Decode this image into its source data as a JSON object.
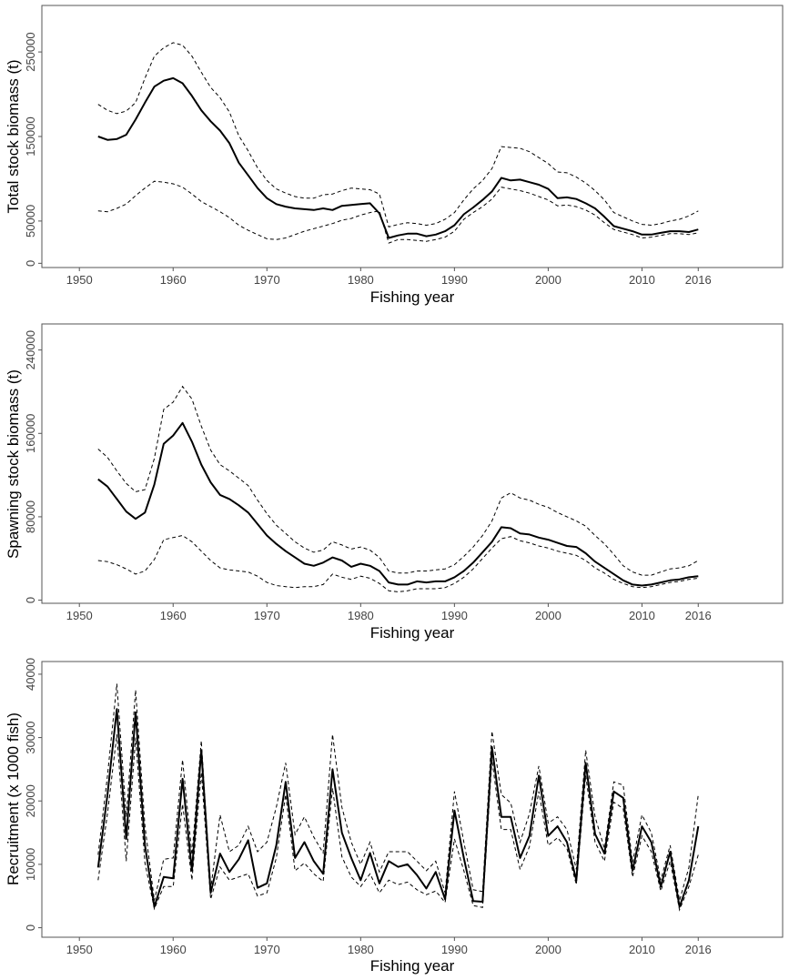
{
  "chart_data": [
    {
      "type": "line",
      "xlabel": "Fishing year",
      "ylabel": "Total stock biomass (t)",
      "xlim": [
        1946,
        2025
      ],
      "ylim": [
        -5000,
        305000
      ],
      "xticks": [
        "1950",
        "1960",
        "1970",
        "1980",
        "1990",
        "2000",
        "2010",
        "2016"
      ],
      "yticks": [
        "0",
        "50000",
        "150000",
        "250000"
      ],
      "grid": false,
      "x": [
        1952,
        1953,
        1954,
        1955,
        1956,
        1957,
        1958,
        1959,
        1960,
        1961,
        1962,
        1963,
        1964,
        1965,
        1966,
        1967,
        1968,
        1969,
        1970,
        1971,
        1972,
        1973,
        1974,
        1975,
        1976,
        1977,
        1978,
        1979,
        1980,
        1981,
        1982,
        1983,
        1984,
        1985,
        1986,
        1987,
        1988,
        1989,
        1990,
        1991,
        1992,
        1993,
        1994,
        1995,
        1996,
        1997,
        1998,
        1999,
        2000,
        2001,
        2002,
        2003,
        2004,
        2005,
        2006,
        2007,
        2008,
        2009,
        2010,
        2011,
        2012,
        2013,
        2014,
        2015,
        2016
      ],
      "series": [
        {
          "values": [
            150000,
            146000,
            147000,
            152000,
            170000,
            190000,
            209000,
            216000,
            219000,
            213000,
            198000,
            181000,
            168000,
            157000,
            142000,
            119000,
            104000,
            89000,
            77000,
            70000,
            67000,
            65000,
            64000,
            63000,
            65000,
            63000,
            68000,
            69000,
            70000,
            71000,
            59000,
            30000,
            33000,
            35000,
            35000,
            32000,
            34000,
            38000,
            45000,
            58000,
            66000,
            75000,
            85000,
            101000,
            98000,
            99000,
            96000,
            93000,
            88000,
            77000,
            78000,
            76000,
            71000,
            65000,
            55000,
            44000,
            41000,
            38000,
            34000,
            34000,
            36000,
            38000,
            38000,
            37000,
            40000
          ]
        },
        {
          "values": [
            188000,
            181000,
            177000,
            180000,
            190000,
            219000,
            245000,
            255000,
            261000,
            258000,
            245000,
            226000,
            208000,
            196000,
            179000,
            151000,
            133000,
            113000,
            98000,
            88000,
            83000,
            79000,
            77000,
            77000,
            81000,
            82000,
            86000,
            89000,
            88000,
            87000,
            82000,
            43000,
            46000,
            48000,
            47000,
            45000,
            47000,
            52000,
            60000,
            75000,
            88000,
            98000,
            112000,
            138000,
            137000,
            136000,
            132000,
            125000,
            118000,
            108000,
            107000,
            102000,
            95000,
            86000,
            75000,
            60000,
            55000,
            50000,
            46000,
            45000,
            47000,
            50000,
            52000,
            56000,
            62000
          ]
        },
        {
          "values": [
            62000,
            61000,
            65000,
            70000,
            80000,
            89000,
            97000,
            96000,
            94000,
            90000,
            82000,
            73000,
            67000,
            61000,
            54000,
            45000,
            39000,
            34000,
            29000,
            28000,
            30000,
            34000,
            38000,
            41000,
            44000,
            47000,
            51000,
            53000,
            57000,
            60000,
            62000,
            24000,
            28000,
            28000,
            27000,
            26000,
            28000,
            31000,
            38000,
            52000,
            60000,
            67000,
            76000,
            90000,
            88000,
            86000,
            83000,
            79000,
            75000,
            68000,
            69000,
            67000,
            63000,
            57000,
            48000,
            40000,
            37000,
            34000,
            30000,
            31000,
            33000,
            35000,
            35000,
            34000,
            36000
          ]
        }
      ]
    },
    {
      "type": "line",
      "xlabel": "Fishing year",
      "ylabel": "Spawning stock biomass (t)",
      "xlim": [
        1946,
        2025
      ],
      "ylim": [
        -3000,
        265000
      ],
      "xticks": [
        "1950",
        "1960",
        "1970",
        "1980",
        "1990",
        "2000",
        "2010",
        "2016"
      ],
      "yticks": [
        "0",
        "80000",
        "160000",
        "240000"
      ],
      "grid": false,
      "x": [
        1952,
        1953,
        1954,
        1955,
        1956,
        1957,
        1958,
        1959,
        1960,
        1961,
        1962,
        1963,
        1964,
        1965,
        1966,
        1967,
        1968,
        1969,
        1970,
        1971,
        1972,
        1973,
        1974,
        1975,
        1976,
        1977,
        1978,
        1979,
        1980,
        1981,
        1982,
        1983,
        1984,
        1985,
        1986,
        1987,
        1988,
        1989,
        1990,
        1991,
        1992,
        1993,
        1994,
        1995,
        1996,
        1997,
        1998,
        1999,
        2000,
        2001,
        2002,
        2003,
        2004,
        2005,
        2006,
        2007,
        2008,
        2009,
        2010,
        2011,
        2012,
        2013,
        2014,
        2015,
        2016
      ],
      "series": [
        {
          "values": [
            116000,
            109000,
            97000,
            85000,
            78000,
            84000,
            111000,
            150000,
            158000,
            170000,
            152000,
            130000,
            113000,
            101000,
            97000,
            91000,
            84000,
            73000,
            62000,
            54000,
            47000,
            41000,
            35000,
            33000,
            36000,
            41000,
            38000,
            32000,
            35000,
            33000,
            28000,
            17000,
            15000,
            15000,
            18000,
            17000,
            18000,
            18000,
            22000,
            28000,
            36000,
            46000,
            56000,
            70000,
            69000,
            64000,
            63000,
            60000,
            58000,
            55000,
            52000,
            51000,
            45000,
            37000,
            31000,
            25000,
            19000,
            15000,
            14000,
            15000,
            17000,
            19000,
            20000,
            22000,
            23000
          ]
        },
        {
          "values": [
            145000,
            137000,
            124000,
            112000,
            104000,
            106000,
            136000,
            183000,
            190000,
            205000,
            193000,
            167000,
            144000,
            130000,
            124000,
            117000,
            110000,
            96000,
            83000,
            72000,
            64000,
            56000,
            50000,
            46000,
            48000,
            56000,
            53000,
            49000,
            51000,
            48000,
            41000,
            28000,
            26000,
            26000,
            28000,
            28000,
            29000,
            30000,
            34000,
            42000,
            51000,
            62000,
            76000,
            98000,
            103000,
            98000,
            96000,
            92000,
            89000,
            84000,
            80000,
            76000,
            71000,
            62000,
            54000,
            44000,
            33000,
            27000,
            24000,
            24000,
            27000,
            30000,
            31000,
            33000,
            38000
          ]
        },
        {
          "values": [
            38000,
            37000,
            34000,
            30000,
            25000,
            28000,
            39000,
            58000,
            60000,
            62000,
            56000,
            47000,
            38000,
            31000,
            29000,
            28000,
            27000,
            23000,
            17000,
            14000,
            13000,
            12000,
            13000,
            13000,
            15000,
            25000,
            22000,
            20000,
            23000,
            21000,
            16000,
            9000,
            8000,
            9000,
            11000,
            11000,
            11000,
            12000,
            16000,
            22000,
            30000,
            40000,
            50000,
            59000,
            61000,
            57000,
            55000,
            52000,
            50000,
            47000,
            45000,
            43000,
            38000,
            31000,
            26000,
            20000,
            16000,
            13000,
            12000,
            13000,
            15000,
            17000,
            18000,
            20000,
            21000
          ]
        }
      ]
    },
    {
      "type": "line",
      "xlabel": "Fishing year",
      "ylabel": "Recruitment (x 1000 fish)",
      "xlim": [
        1946,
        2025
      ],
      "ylim": [
        -1500,
        42000
      ],
      "xticks": [
        "1950",
        "1960",
        "1970",
        "1980",
        "1990",
        "2000",
        "2010",
        "2016"
      ],
      "yticks": [
        "0",
        "10000",
        "20000",
        "30000",
        "40000"
      ],
      "grid": false,
      "x": [
        1952,
        1953,
        1954,
        1955,
        1956,
        1957,
        1958,
        1959,
        1960,
        1961,
        1962,
        1963,
        1964,
        1965,
        1966,
        1967,
        1968,
        1969,
        1970,
        1971,
        1972,
        1973,
        1974,
        1975,
        1976,
        1977,
        1978,
        1979,
        1980,
        1981,
        1982,
        1983,
        1984,
        1985,
        1986,
        1987,
        1988,
        1989,
        1990,
        1991,
        1992,
        1993,
        1994,
        1995,
        1996,
        1997,
        1998,
        1999,
        2000,
        2001,
        2002,
        2003,
        2004,
        2005,
        2006,
        2007,
        2008,
        2009,
        2010,
        2011,
        2012,
        2013,
        2014,
        2015,
        2016
      ],
      "series": [
        {
          "values": [
            9500,
            21000,
            34500,
            14000,
            34000,
            13000,
            3300,
            8000,
            7800,
            23500,
            9000,
            28000,
            5500,
            11700,
            8800,
            10800,
            13800,
            6300,
            7000,
            13000,
            23000,
            11000,
            13500,
            10500,
            8500,
            25000,
            15000,
            11000,
            7500,
            11800,
            7000,
            10500,
            9600,
            10000,
            8300,
            6200,
            8800,
            4500,
            18500,
            11000,
            4200,
            4100,
            28500,
            17500,
            17500,
            11000,
            14500,
            24000,
            14500,
            16000,
            13500,
            7500,
            26000,
            14800,
            11700,
            21500,
            20500,
            9000,
            16000,
            13500,
            6500,
            12000,
            3300,
            7500,
            16000
          ]
        },
        {
          "values": [
            7500,
            18000,
            30500,
            10500,
            30000,
            10200,
            3000,
            6500,
            6500,
            19500,
            7500,
            24500,
            4500,
            9600,
            7500,
            8000,
            8500,
            5000,
            5500,
            11000,
            21000,
            9000,
            10200,
            8500,
            7300,
            22000,
            11200,
            8000,
            6500,
            8500,
            5500,
            7500,
            6800,
            7200,
            6000,
            5200,
            5800,
            4000,
            14000,
            9000,
            3500,
            3200,
            26500,
            15500,
            15500,
            9200,
            12800,
            21500,
            13000,
            14200,
            12500,
            6800,
            24000,
            13500,
            10500,
            19800,
            18800,
            8000,
            14500,
            12000,
            5800,
            10500,
            2800,
            6500,
            11500
          ]
        },
        {
          "values": [
            11500,
            24000,
            38500,
            17500,
            37500,
            16000,
            4300,
            10800,
            11000,
            26500,
            11500,
            29500,
            6000,
            17800,
            12000,
            13000,
            16000,
            12000,
            13500,
            19000,
            26000,
            14700,
            17500,
            14300,
            11800,
            30500,
            19000,
            13500,
            10000,
            13500,
            8800,
            12000,
            12000,
            12000,
            10500,
            9000,
            10500,
            5500,
            21500,
            13500,
            6000,
            5700,
            31000,
            21000,
            19700,
            13500,
            18000,
            25500,
            16500,
            17500,
            15500,
            9200,
            28000,
            17500,
            12500,
            23000,
            22500,
            10300,
            17800,
            15000,
            7500,
            13000,
            4300,
            9500,
            21000
          ]
        }
      ]
    }
  ]
}
